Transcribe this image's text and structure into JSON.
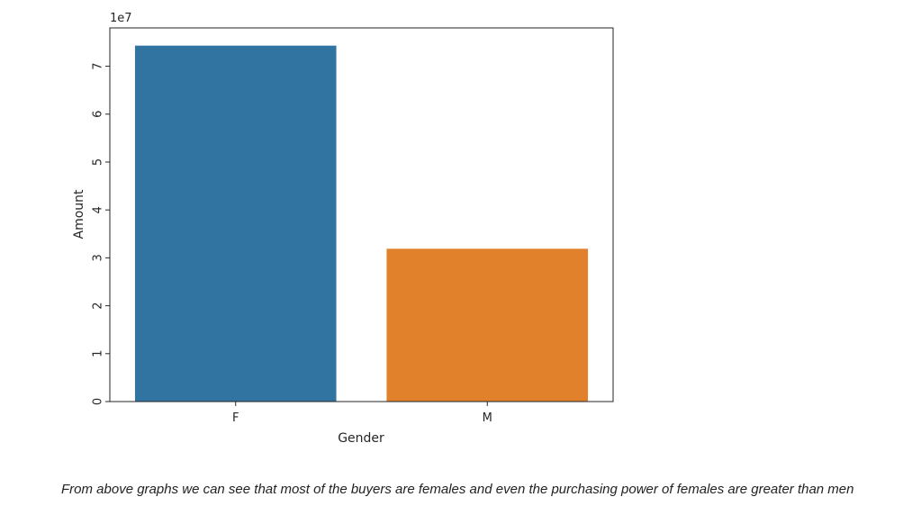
{
  "chart_data": {
    "type": "bar",
    "categories": [
      "F",
      "M"
    ],
    "values": [
      74300000,
      31900000
    ],
    "colors": [
      "#3274a1",
      "#e1812c"
    ],
    "xlabel": "Gender",
    "ylabel": "Amount",
    "ylim": [
      0,
      78000000
    ],
    "yticks": [
      0,
      10000000,
      20000000,
      30000000,
      40000000,
      50000000,
      60000000,
      70000000
    ],
    "ytick_labels": [
      "0",
      "1",
      "2",
      "3",
      "4",
      "5",
      "6",
      "7"
    ],
    "offset_label": "1e7",
    "grid": false,
    "legend": "none"
  },
  "caption": "From above graphs we can see that most of the buyers are females and even the purchasing power of females are greater than men"
}
